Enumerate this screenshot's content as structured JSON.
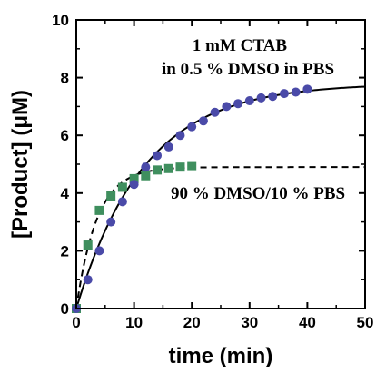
{
  "chart_data": {
    "type": "scatter",
    "xlabel": "time (min)",
    "ylabel": "[Product] (μM)",
    "xlim": [
      0,
      50
    ],
    "ylim": [
      0,
      10
    ],
    "xticks": [
      0,
      10,
      20,
      30,
      40,
      50
    ],
    "yticks": [
      0,
      2,
      4,
      6,
      8,
      10
    ],
    "grid": false,
    "annotations": [
      {
        "line1": "1 mM CTAB",
        "line2": "in 0.5 % DMSO in PBS"
      },
      {
        "line1": "90 % DMSO/10 % PBS"
      }
    ],
    "series": [
      {
        "marker": "circle",
        "color": "#4a4aa8",
        "x": [
          0,
          2,
          4,
          6,
          8,
          10,
          12,
          14,
          16,
          18,
          20,
          22,
          24,
          26,
          28,
          30,
          32,
          34,
          36,
          38,
          40
        ],
        "y": [
          0,
          1.0,
          2.0,
          3.0,
          3.7,
          4.3,
          4.9,
          5.3,
          5.6,
          6.0,
          6.3,
          6.5,
          6.8,
          7.0,
          7.1,
          7.2,
          7.3,
          7.35,
          7.45,
          7.5,
          7.6
        ],
        "fit": {
          "style": "solid",
          "plateau": 7.8,
          "rate": 0.085,
          "x_end": 50
        }
      },
      {
        "marker": "square",
        "color": "#3f8f5e",
        "x": [
          0,
          2,
          4,
          6,
          8,
          10,
          12,
          14,
          16,
          18,
          20
        ],
        "y": [
          0,
          2.2,
          3.4,
          3.9,
          4.2,
          4.5,
          4.6,
          4.8,
          4.85,
          4.9,
          4.95
        ],
        "fit": {
          "style": "dashed",
          "plateau": 4.9,
          "rate": 0.28,
          "x_end": 50
        }
      }
    ]
  }
}
